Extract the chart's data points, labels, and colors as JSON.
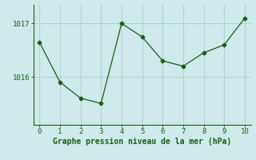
{
  "x": [
    0,
    1,
    2,
    3,
    4,
    5,
    6,
    7,
    8,
    9,
    10
  ],
  "y": [
    1016.65,
    1015.9,
    1015.6,
    1015.5,
    1017.0,
    1016.75,
    1016.3,
    1016.2,
    1016.45,
    1016.6,
    1017.1
  ],
  "line_color": "#1a5c1a",
  "marker": "D",
  "marker_size": 2.5,
  "linewidth": 0.9,
  "bg_color": "#ceeaea",
  "grid_color": "#aacfcf",
  "xlabel": "Graphe pression niveau de la mer (hPa)",
  "xlabel_fontsize": 7,
  "tick_fontsize": 6.5,
  "xlim": [
    -0.3,
    10.3
  ],
  "ylim": [
    1015.1,
    1017.35
  ],
  "yticks": [
    1016,
    1017
  ],
  "xticks": [
    0,
    1,
    2,
    3,
    4,
    5,
    6,
    7,
    8,
    9,
    10
  ]
}
